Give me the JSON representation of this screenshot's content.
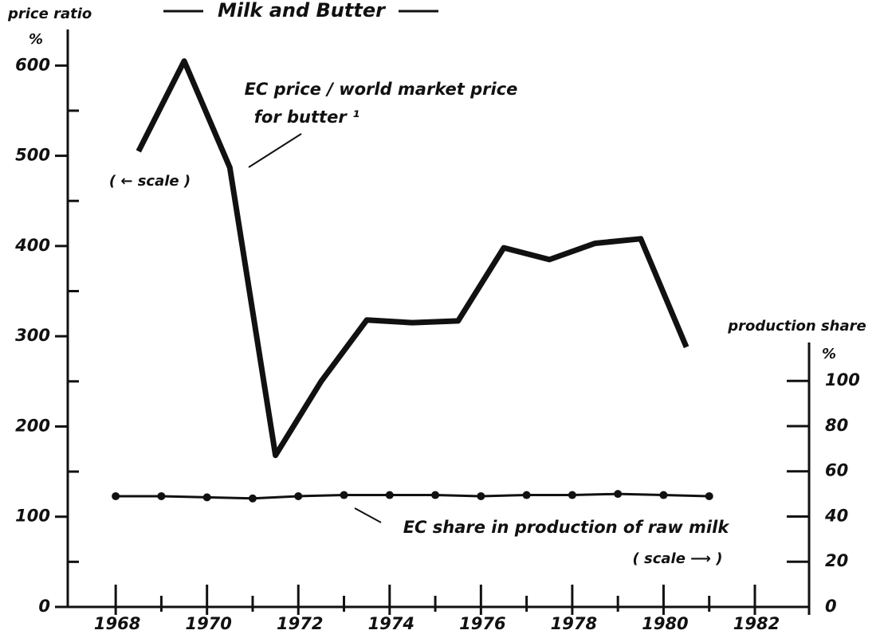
{
  "chart_data": {
    "type": "line",
    "title": "Milk and Butter",
    "ylabel": "price ratio",
    "yunit": "%",
    "y2label": "production share",
    "y2unit": "%",
    "xlim": [
      1966.95,
      1983.1
    ],
    "xticks": [
      1968,
      1970,
      1972,
      1974,
      1976,
      1978,
      1980,
      1982
    ],
    "xminor_ticks": [
      1969,
      1971,
      1973,
      1975,
      1977,
      1979,
      1981
    ],
    "ylim": [
      0,
      640
    ],
    "yticks": [
      0,
      100,
      200,
      300,
      400,
      500,
      600
    ],
    "yminor_ticks": [
      50,
      150,
      250,
      350,
      450,
      550
    ],
    "y2lim": [
      0,
      117
    ],
    "y2ticks": [
      0,
      20,
      40,
      60,
      80,
      100
    ],
    "series": [
      {
        "name": "EC price / world market price",
        "color": "#111111",
        "axis": "y",
        "x": [
          1968.5,
          1969.5,
          1970.5,
          1971.5,
          1972.5,
          1973.5,
          1974.5,
          1975.5,
          1976.5,
          1977.5,
          1978.5,
          1979.5,
          1980.5
        ],
        "values": [
          505,
          605,
          487,
          168,
          250,
          318,
          315,
          317,
          398,
          385,
          403,
          408,
          288
        ]
      },
      {
        "name": "EC share in production of raw milk",
        "color": "#111111",
        "axis": "y2",
        "x": [
          1968,
          1969,
          1970,
          1971,
          1972,
          1973,
          1974,
          1975,
          1976,
          1977,
          1978,
          1979,
          1980,
          1981
        ],
        "values": [
          49,
          49,
          48.5,
          48,
          49,
          49.5,
          49.5,
          49.5,
          49,
          49.5,
          49.5,
          50,
          49.5,
          49
        ]
      }
    ],
    "annotations": [
      "for butter ¹",
      "( ← scale )",
      "( scale ⟶ )"
    ]
  }
}
